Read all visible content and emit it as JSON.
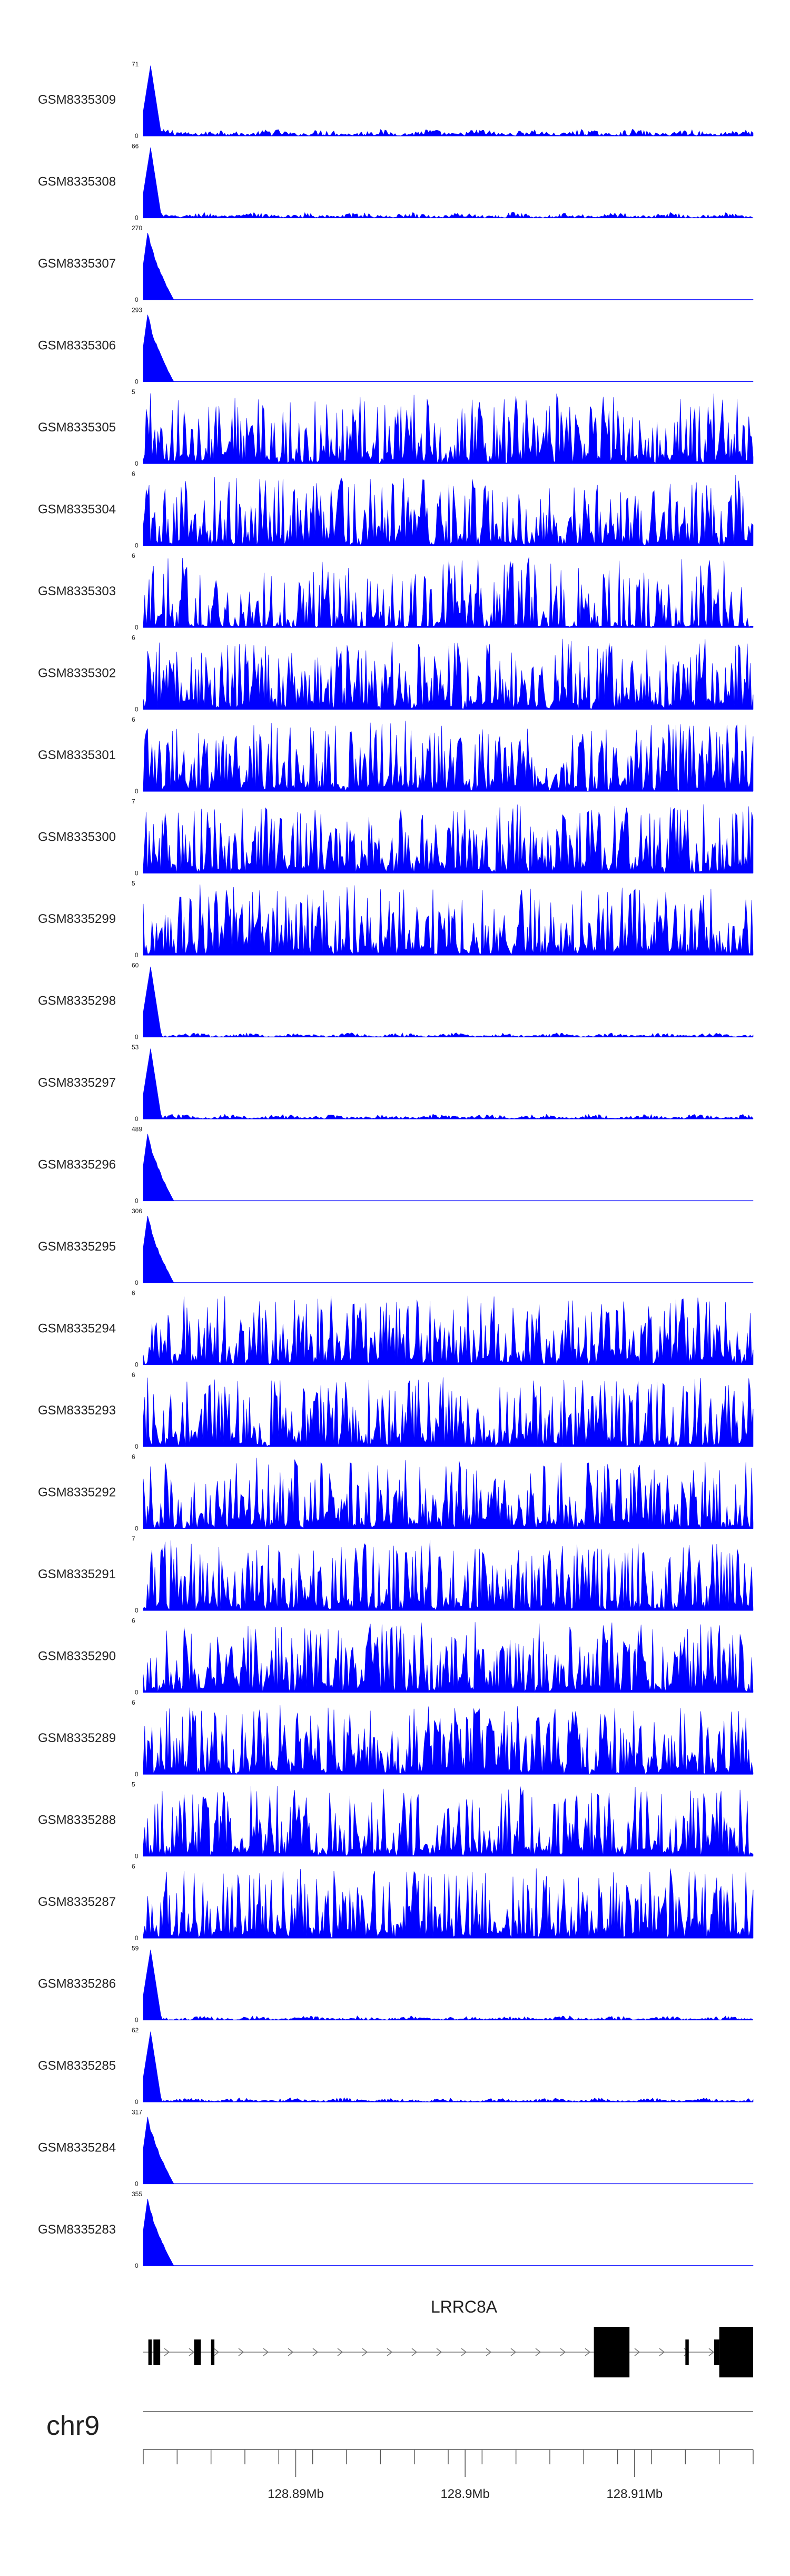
{
  "chart_data": {
    "type": "area",
    "tracks": [
      {
        "name": "GSM8335309",
        "ymax": "71",
        "ymin": "0",
        "kind": "peak_noise",
        "peak_y": 71,
        "noise": 0.1
      },
      {
        "name": "GSM8335308",
        "ymax": "66",
        "ymin": "0",
        "kind": "peak_noise",
        "peak_y": 66,
        "noise": 0.08
      },
      {
        "name": "GSM8335307",
        "ymax": "270",
        "ymin": "0",
        "kind": "peak_only",
        "peak_y": 270
      },
      {
        "name": "GSM8335306",
        "ymax": "293",
        "ymin": "0",
        "kind": "peak_only",
        "peak_y": 293
      },
      {
        "name": "GSM8335305",
        "ymax": "5",
        "ymin": "0",
        "kind": "noisy"
      },
      {
        "name": "GSM8335304",
        "ymax": "6",
        "ymin": "0",
        "kind": "noisy"
      },
      {
        "name": "GSM8335303",
        "ymax": "6",
        "ymin": "0",
        "kind": "noisy_sparse"
      },
      {
        "name": "GSM8335302",
        "ymax": "6",
        "ymin": "0",
        "kind": "noisy"
      },
      {
        "name": "GSM8335301",
        "ymax": "6",
        "ymin": "0",
        "kind": "noisy"
      },
      {
        "name": "GSM8335300",
        "ymax": "7",
        "ymin": "0",
        "kind": "noisy"
      },
      {
        "name": "GSM8335299",
        "ymax": "5",
        "ymin": "0",
        "kind": "noisy"
      },
      {
        "name": "GSM8335298",
        "ymax": "60",
        "ymin": "0",
        "kind": "peak_noise",
        "peak_y": 60,
        "noise": 0.06
      },
      {
        "name": "GSM8335297",
        "ymax": "53",
        "ymin": "0",
        "kind": "peak_noise",
        "peak_y": 53,
        "noise": 0.07
      },
      {
        "name": "GSM8335296",
        "ymax": "489",
        "ymin": "0",
        "kind": "peak_only",
        "peak_y": 489
      },
      {
        "name": "GSM8335295",
        "ymax": "306",
        "ymin": "0",
        "kind": "peak_only",
        "peak_y": 306
      },
      {
        "name": "GSM8335294",
        "ymax": "6",
        "ymin": "0",
        "kind": "noisy"
      },
      {
        "name": "GSM8335293",
        "ymax": "6",
        "ymin": "0",
        "kind": "noisy"
      },
      {
        "name": "GSM8335292",
        "ymax": "6",
        "ymin": "0",
        "kind": "noisy"
      },
      {
        "name": "GSM8335291",
        "ymax": "7",
        "ymin": "0",
        "kind": "noisy"
      },
      {
        "name": "GSM8335290",
        "ymax": "6",
        "ymin": "0",
        "kind": "noisy"
      },
      {
        "name": "GSM8335289",
        "ymax": "6",
        "ymin": "0",
        "kind": "noisy"
      },
      {
        "name": "GSM8335288",
        "ymax": "5",
        "ymin": "0",
        "kind": "noisy"
      },
      {
        "name": "GSM8335287",
        "ymax": "6",
        "ymin": "0",
        "kind": "noisy"
      },
      {
        "name": "GSM8335286",
        "ymax": "59",
        "ymin": "0",
        "kind": "peak_noise",
        "peak_y": 59,
        "noise": 0.06
      },
      {
        "name": "GSM8335285",
        "ymax": "62",
        "ymin": "0",
        "kind": "peak_noise",
        "peak_y": 62,
        "noise": 0.06
      },
      {
        "name": "GSM8335284",
        "ymax": "317",
        "ymin": "0",
        "kind": "peak_only",
        "peak_y": 317
      },
      {
        "name": "GSM8335283",
        "ymax": "355",
        "ymin": "0",
        "kind": "peak_only",
        "peak_y": 355
      }
    ],
    "gene": {
      "name": "LRRC8A",
      "exons": [
        {
          "start": 128.8813,
          "end": 128.8815
        },
        {
          "start": 128.8816,
          "end": 128.882
        },
        {
          "start": 128.884,
          "end": 128.8844
        },
        {
          "start": 128.885,
          "end": 128.8852
        },
        {
          "start": 128.9076,
          "end": 128.9097
        },
        {
          "start": 128.913,
          "end": 128.9132
        },
        {
          "start": 128.9147,
          "end": 128.915
        },
        {
          "start": 128.915,
          "end": 128.917
        }
      ],
      "thick_exons": [
        4,
        7
      ]
    },
    "chromosome": "chr9",
    "x_range": [
      128.881,
      128.917
    ],
    "x_ticks": [
      {
        "value": 128.89,
        "label": "128.89Mb"
      },
      {
        "value": 128.9,
        "label": "128.9Mb"
      },
      {
        "value": 128.91,
        "label": "128.91Mb"
      }
    ],
    "minor_tick_step": 0.002,
    "fill_color": "#0000ff",
    "grid": false
  }
}
